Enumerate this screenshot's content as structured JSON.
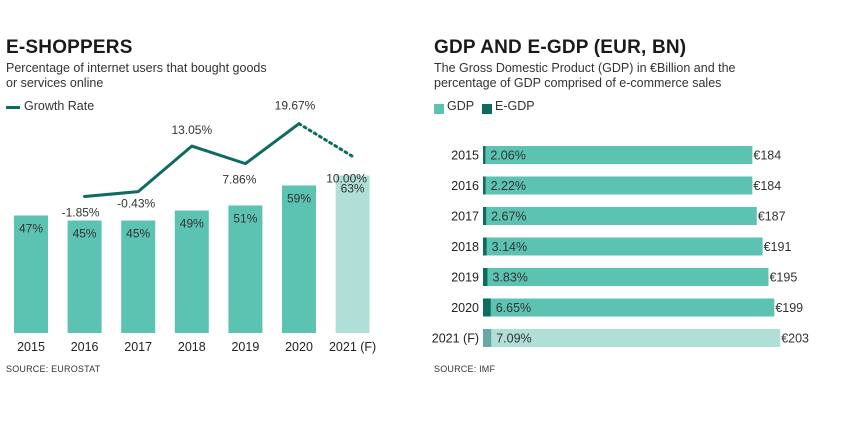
{
  "colors": {
    "teal": "#5cc3b2",
    "teal_light": "#b0dfd7",
    "dark_teal": "#0e6b5f",
    "gray_teal": "#6aa8a4",
    "text": "#333333"
  },
  "left": {
    "title": "E-SHOPPERS",
    "subtitle_line1": "Percentage of internet users that bought goods",
    "subtitle_line2": "or services online",
    "legend_label": "Growth Rate",
    "source": "SOURCE: EUROSTAT"
  },
  "right": {
    "title": "GDP AND E-GDP (EUR, BN)",
    "subtitle_line1": "The Gross Domestic Product (GDP) in €Billion and the",
    "subtitle_line2": "percentage of GDP comprised of e-commerce sales",
    "legend_gdp": "GDP",
    "legend_egdp": "E-GDP",
    "source": "SOURCE: IMF"
  },
  "chart_data": [
    {
      "type": "bar",
      "title": "E-SHOPPERS",
      "categories": [
        "2015",
        "2016",
        "2017",
        "2018",
        "2019",
        "2020",
        "2021 (F)"
      ],
      "values": [
        47,
        45,
        45,
        49,
        51,
        59,
        63
      ],
      "value_labels": [
        "47%",
        "45%",
        "45%",
        "49%",
        "51%",
        "59%",
        "63%"
      ],
      "forecast_index": 6,
      "line_series": {
        "name": "Growth Rate",
        "x": [
          "2016",
          "2017",
          "2018",
          "2019",
          "2020",
          "2021 (F)"
        ],
        "values": [
          -1.85,
          -0.43,
          13.05,
          7.86,
          19.67,
          10.0
        ],
        "labels": [
          "-1.85%",
          "-0.43%",
          "13.05%",
          "7.86%",
          "19.67%",
          "10.00%"
        ],
        "dashed_last_segment": true
      },
      "legend": "top-left",
      "grid": false
    },
    {
      "type": "bar",
      "orientation": "horizontal",
      "title": "GDP AND E-GDP (EUR, BN)",
      "categories": [
        "2015",
        "2016",
        "2017",
        "2018",
        "2019",
        "2020",
        "2021 (F)"
      ],
      "series": [
        {
          "name": "GDP",
          "values": [
            184,
            184,
            187,
            191,
            195,
            199,
            203
          ],
          "labels": [
            "€184",
            "€184",
            "€187",
            "€191",
            "€195",
            "€199",
            "€203"
          ]
        },
        {
          "name": "E-GDP",
          "values": [
            2.06,
            2.22,
            2.67,
            3.14,
            3.83,
            6.65,
            7.09
          ],
          "labels": [
            "2.06%",
            "2.22%",
            "2.67%",
            "3.14%",
            "3.83%",
            "6.65%",
            "7.09%"
          ]
        }
      ],
      "forecast_index": 6,
      "legend": "top-left",
      "grid": false
    }
  ]
}
